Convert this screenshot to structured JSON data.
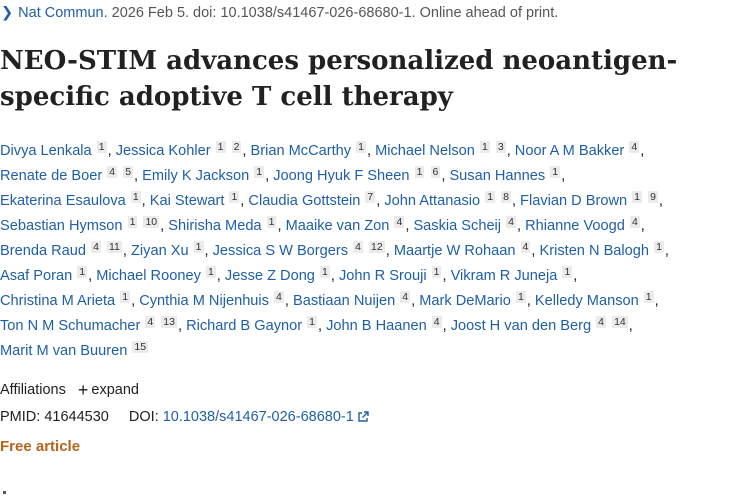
{
  "citation": {
    "journal": "Nat Commun.",
    "rest": " 2026 Feb 5. doi: 10.1038/s41467-026-68680-1. Online ahead of print."
  },
  "title": "NEO-STIM advances personalized neoantigen-specific adoptive T cell therapy",
  "authors": [
    [
      {
        "name": "Divya Lenkala",
        "sups": [
          "1"
        ]
      },
      {
        "name": "Jessica Kohler",
        "sups": [
          "1",
          "2"
        ]
      },
      {
        "name": "Brian McCarthy",
        "sups": [
          "1"
        ]
      },
      {
        "name": "Michael Nelson",
        "sups": [
          "1",
          "3"
        ]
      },
      {
        "name": "Noor A M Bakker",
        "sups": [
          "4"
        ]
      }
    ],
    [
      {
        "name": "Renate de Boer",
        "sups": [
          "4",
          "5"
        ]
      },
      {
        "name": "Emily K Jackson",
        "sups": [
          "1"
        ]
      },
      {
        "name": "Joong Hyuk F Sheen",
        "sups": [
          "1",
          "6"
        ]
      },
      {
        "name": "Susan Hannes",
        "sups": [
          "1"
        ]
      }
    ],
    [
      {
        "name": "Ekaterina Esaulova",
        "sups": [
          "1"
        ]
      },
      {
        "name": "Kai Stewart",
        "sups": [
          "1"
        ]
      },
      {
        "name": "Claudia Gottstein",
        "sups": [
          "7"
        ]
      },
      {
        "name": "John Attanasio",
        "sups": [
          "1",
          "8"
        ]
      },
      {
        "name": "Flavian D Brown",
        "sups": [
          "1",
          "9"
        ]
      }
    ],
    [
      {
        "name": "Sebastian Hymson",
        "sups": [
          "1",
          "10"
        ]
      },
      {
        "name": "Shirisha Meda",
        "sups": [
          "1"
        ]
      },
      {
        "name": "Maaike van Zon",
        "sups": [
          "4"
        ]
      },
      {
        "name": "Saskia Scheij",
        "sups": [
          "4"
        ]
      },
      {
        "name": "Rhianne Voogd",
        "sups": [
          "4"
        ]
      }
    ],
    [
      {
        "name": "Brenda Raud",
        "sups": [
          "4",
          "11"
        ]
      },
      {
        "name": "Ziyan Xu",
        "sups": [
          "1"
        ]
      },
      {
        "name": "Jessica S W Borgers",
        "sups": [
          "4",
          "12"
        ]
      },
      {
        "name": "Maartje W Rohaan",
        "sups": [
          "4"
        ]
      },
      {
        "name": "Kristen N Balogh",
        "sups": [
          "1"
        ]
      }
    ],
    [
      {
        "name": "Asaf Poran",
        "sups": [
          "1"
        ]
      },
      {
        "name": "Michael Rooney",
        "sups": [
          "1"
        ]
      },
      {
        "name": "Jesse Z Dong",
        "sups": [
          "1"
        ]
      },
      {
        "name": "John R Srouji",
        "sups": [
          "1"
        ]
      },
      {
        "name": "Vikram R Juneja",
        "sups": [
          "1"
        ]
      }
    ],
    [
      {
        "name": "Christina M Arieta",
        "sups": [
          "1"
        ]
      },
      {
        "name": "Cynthia M Nijenhuis",
        "sups": [
          "4"
        ]
      },
      {
        "name": "Bastiaan Nuijen",
        "sups": [
          "4"
        ]
      },
      {
        "name": "Mark DeMario",
        "sups": [
          "1"
        ]
      },
      {
        "name": "Kelledy Manson",
        "sups": [
          "1"
        ]
      }
    ],
    [
      {
        "name": "Ton N M Schumacher",
        "sups": [
          "4",
          "13"
        ]
      },
      {
        "name": "Richard B Gaynor",
        "sups": [
          "1"
        ]
      },
      {
        "name": "John B Haanen",
        "sups": [
          "4"
        ]
      },
      {
        "name": "Joost H van den Berg",
        "sups": [
          "4",
          "14"
        ]
      }
    ],
    [
      {
        "name": "Marit M van Buuren",
        "sups": [
          "15"
        ]
      }
    ]
  ],
  "affiliations": {
    "label": "Affiliations",
    "expand": "expand"
  },
  "ids": {
    "pmid_label": "PMID:",
    "pmid": "41644530",
    "doi_label": "DOI:",
    "doi": "10.1038/s41467-026-68680-1"
  },
  "free_article": "Free article"
}
